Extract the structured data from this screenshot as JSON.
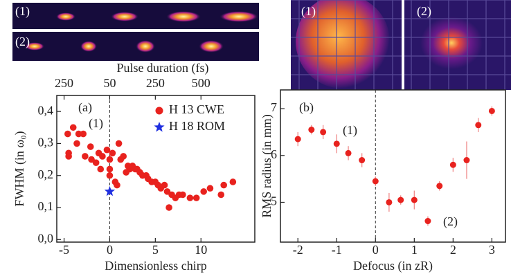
{
  "chart_data": [
    {
      "type": "scatter",
      "panel_label": "(a)",
      "image_labels": [
        "(1)",
        "(2)"
      ],
      "xlabel": "Dimensionless chirp",
      "ylabel": "FWHM  (in ω₀)",
      "x2label": "Pulse duration (fs)",
      "x2tick_labels": [
        "250",
        "50",
        "250",
        "500"
      ],
      "x2tick_positions": [
        -5,
        0,
        5,
        10
      ],
      "xlim": [
        -5.8,
        15.9
      ],
      "xticks": [
        -5,
        0,
        5,
        10
      ],
      "ylim": [
        -0.008,
        0.45
      ],
      "yticks": [
        {
          "value": 0,
          "label": "0,0"
        },
        {
          "value": 0.1,
          "label": "0,1"
        },
        {
          "value": 0.2,
          "label": "0,2"
        },
        {
          "value": 0.3,
          "label": "0,3"
        },
        {
          "value": 0.4,
          "label": "0,4"
        }
      ],
      "vline": 0,
      "legend": "upper right",
      "annotations": [
        "(1)",
        "(2)"
      ],
      "series": [
        {
          "name": "H 13 CWE",
          "color": "#e8221e",
          "marker": "circle",
          "x": [
            -4.6,
            -4.5,
            -4.5,
            -4.0,
            -3.6,
            -3.4,
            -2.9,
            -2.7,
            -2.1,
            -2.0,
            -1.5,
            -1.2,
            -1.0,
            -0.8,
            -0.3,
            0,
            0,
            0,
            0.3,
            0.6,
            0.8,
            1.0,
            1.2,
            1.5,
            1.8,
            2.0,
            2.2,
            2.5,
            2.8,
            3.0,
            3.3,
            3.6,
            4.0,
            4.2,
            4.6,
            5.0,
            5.3,
            5.6,
            6.0,
            6.3,
            6.5,
            6.8,
            7.2,
            7.6,
            8.0,
            8.8,
            9.5,
            10.3,
            11.0,
            12.2,
            12.5,
            13.5
          ],
          "values": [
            0.33,
            0.27,
            0.26,
            0.35,
            0.3,
            0.33,
            0.33,
            0.26,
            0.29,
            0.25,
            0.24,
            0.27,
            0.22,
            0.26,
            0.28,
            0.25,
            0.22,
            0.2,
            0.27,
            0.18,
            0.17,
            0.3,
            0.25,
            0.26,
            0.21,
            0.23,
            0.22,
            0.23,
            0.22,
            0.22,
            0.21,
            0.2,
            0.2,
            0.19,
            0.18,
            0.18,
            0.17,
            0.16,
            0.17,
            0.15,
            0.1,
            0.14,
            0.13,
            0.14,
            0.14,
            0.13,
            0.13,
            0.15,
            0.16,
            0.14,
            0.17,
            0.18
          ]
        },
        {
          "name": "H 18 ROM",
          "color": "#1f2fe0",
          "marker": "star",
          "x": [
            0
          ],
          "values": [
            0.15
          ]
        }
      ]
    },
    {
      "type": "errorbar",
      "panel_label": "(b)",
      "image_labels": [
        "(1)",
        "(2)"
      ],
      "xlabel": "Defocus (in zR)",
      "ylabel": "RMS radius (in mm)",
      "xlim": [
        -2.45,
        3.35
      ],
      "xticks": [
        -2,
        -1,
        0,
        1,
        2,
        3
      ],
      "ylim": [
        4.15,
        7.4
      ],
      "yticks": [
        5,
        6,
        7
      ],
      "vline": 0,
      "annotations": [
        "(1)",
        "(2)"
      ],
      "series": [
        {
          "color": "#e8221e",
          "x": [
            -2,
            -1.65,
            -1.35,
            -1,
            -0.7,
            -0.35,
            0,
            0.35,
            0.65,
            1,
            1.35,
            1.65,
            2,
            2.35,
            2.65,
            3
          ],
          "values": [
            6.35,
            6.55,
            6.5,
            6.25,
            6.05,
            5.9,
            5.45,
            5.0,
            5.05,
            5.05,
            4.6,
            5.35,
            5.8,
            5.9,
            6.65,
            6.95
          ],
          "errors": [
            0.15,
            0.1,
            0.15,
            0.2,
            0.15,
            0.15,
            0.1,
            0.2,
            0.1,
            0.2,
            0.1,
            0.1,
            0.15,
            0.4,
            0.15,
            0.1
          ]
        }
      ]
    }
  ]
}
